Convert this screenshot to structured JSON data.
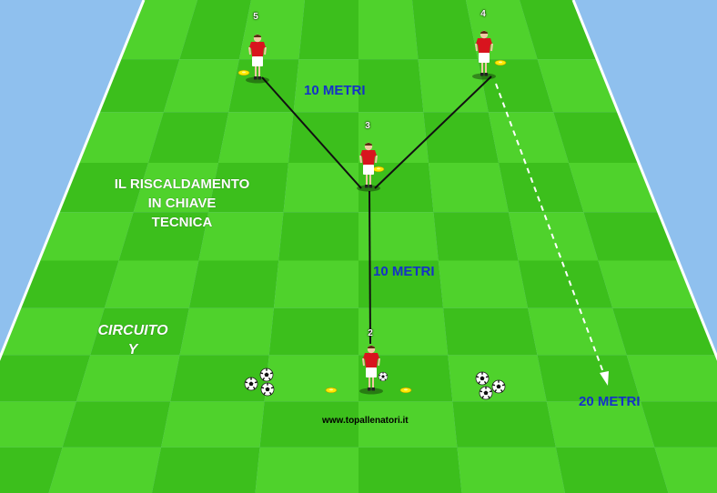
{
  "title": {
    "line1": "IL RISCALDAMENTO",
    "line2": "IN CHIAVE",
    "line3": "TECNICA"
  },
  "circuit": {
    "line1": "CIRCUITO",
    "line2": "Y"
  },
  "distances": {
    "top_arms": "10 METRI",
    "stem": "10 METRI",
    "run": "20 METRI"
  },
  "players": [
    {
      "id": "5",
      "label": "5"
    },
    {
      "id": "4",
      "label": "4"
    },
    {
      "id": "3",
      "label": "3"
    },
    {
      "id": "2",
      "label": "2"
    }
  ],
  "website": "www.topallenatori.it",
  "colors": {
    "pitch_light": "#4fd22c",
    "pitch_dark": "#3cbf1c",
    "sky": "#8fc0ee",
    "jersey": "#d8141e",
    "distance_text": "#1432c8",
    "cone": "#ffea00"
  },
  "icons": [
    "player-figure-icon",
    "soccer-ball-icon",
    "cone-marker-icon"
  ]
}
